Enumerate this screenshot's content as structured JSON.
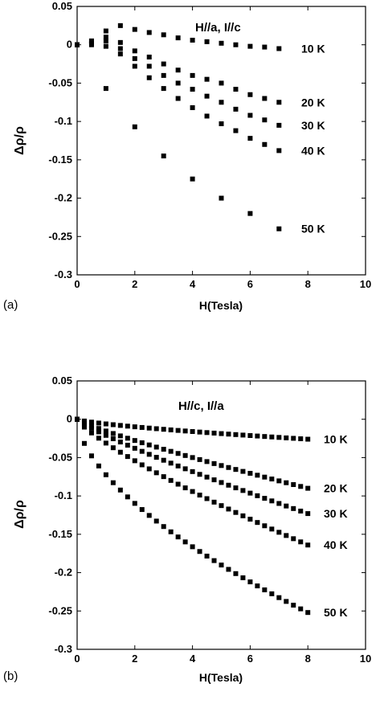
{
  "chart_data": [
    {
      "type": "scatter",
      "panel_label": "(a)",
      "annotation": "H//a, I//c",
      "xlabel": "H(Tesla)",
      "ylabel": "Δρ/ρ",
      "xlim": [
        0,
        10
      ],
      "ylim": [
        -0.3,
        0.05
      ],
      "xticks": [
        "0",
        "2",
        "4",
        "6",
        "8",
        "10"
      ],
      "yticks": [
        "0.05",
        "0",
        "-0.05",
        "-0.1",
        "-0.15",
        "-0.2",
        "-0.25",
        "-0.3"
      ],
      "series": [
        {
          "name": "10 K",
          "x": [
            0,
            0.5,
            1,
            1.5,
            2,
            2.5,
            3,
            3.5,
            4,
            4.5,
            5,
            5.5,
            6,
            6.5,
            7
          ],
          "y": [
            0,
            0.005,
            0.018,
            0.025,
            0.02,
            0.016,
            0.013,
            0.009,
            0.006,
            0.004,
            0.002,
            0.0,
            -0.002,
            -0.003,
            -0.005
          ]
        },
        {
          "name": "20 K",
          "x": [
            0,
            0.5,
            1,
            1.5,
            2,
            2.5,
            3,
            3.5,
            4,
            4.5,
            5,
            5.5,
            6,
            6.5,
            7
          ],
          "y": [
            0,
            0.005,
            0.01,
            0.003,
            -0.008,
            -0.016,
            -0.025,
            -0.033,
            -0.04,
            -0.045,
            -0.05,
            -0.058,
            -0.065,
            -0.07,
            -0.075
          ]
        },
        {
          "name": "30 K",
          "x": [
            0,
            0.5,
            1,
            1.5,
            2,
            2.5,
            3,
            3.5,
            4,
            4.5,
            5,
            5.5,
            6,
            6.5,
            7
          ],
          "y": [
            0,
            0.002,
            0.005,
            -0.005,
            -0.018,
            -0.028,
            -0.04,
            -0.05,
            -0.058,
            -0.067,
            -0.075,
            -0.084,
            -0.092,
            -0.098,
            -0.105
          ]
        },
        {
          "name": "40 K",
          "x": [
            0,
            0.5,
            1,
            1.5,
            2,
            2.5,
            3,
            3.5,
            4,
            4.5,
            5,
            5.5,
            6,
            6.5,
            7
          ],
          "y": [
            0,
            0.0,
            -0.002,
            -0.012,
            -0.028,
            -0.043,
            -0.057,
            -0.07,
            -0.082,
            -0.093,
            -0.103,
            -0.112,
            -0.122,
            -0.13,
            -0.138
          ]
        },
        {
          "name": "50 K",
          "x": [
            0,
            1,
            2,
            3,
            4,
            5,
            6,
            7
          ],
          "y": [
            0,
            -0.057,
            -0.107,
            -0.145,
            -0.175,
            -0.2,
            -0.22,
            -0.24
          ]
        }
      ]
    },
    {
      "type": "scatter",
      "panel_label": "(b)",
      "annotation": "H//c, I//a",
      "xlabel": "H(Tesla)",
      "ylabel": "Δρ/ρ",
      "xlim": [
        0,
        10
      ],
      "ylim": [
        -0.3,
        0.05
      ],
      "xticks": [
        "0",
        "2",
        "4",
        "6",
        "8",
        "10"
      ],
      "yticks": [
        "0.05",
        "0",
        "-0.05",
        "-0.1",
        "-0.15",
        "-0.2",
        "-0.25",
        "-0.3"
      ],
      "series": [
        {
          "name": "10 K",
          "y_at_8": -0.026,
          "power": 0.7,
          "tail": [
            0.5,
            0.6,
            0.7,
            0.8,
            0.9,
            1.0,
            1.1,
            1.2
          ],
          "dx": 0.25
        },
        {
          "name": "20 K",
          "y_at_8": -0.09,
          "power": 0.85,
          "tail": [
            0.5,
            0.6,
            0.7,
            0.8,
            0.9,
            1.0,
            1.1,
            1.2
          ],
          "dx": 0.25
        },
        {
          "name": "30 K",
          "y_at_8": -0.123,
          "power": 0.85,
          "tail": [
            0.5,
            0.6,
            0.7,
            0.8,
            0.9,
            1.0,
            1.1,
            1.2
          ],
          "dx": 0.25
        },
        {
          "name": "40 K",
          "y_at_8": -0.164,
          "power": 0.8,
          "tail": [
            0.5,
            0.6,
            0.7,
            0.8,
            0.9,
            1.0,
            1.1,
            1.2
          ],
          "dx": 0.25
        },
        {
          "name": "50 K",
          "y_at_8": -0.252,
          "power": 0.6,
          "tail": [
            0.25,
            0.5
          ],
          "dx": 0.25
        }
      ]
    }
  ]
}
